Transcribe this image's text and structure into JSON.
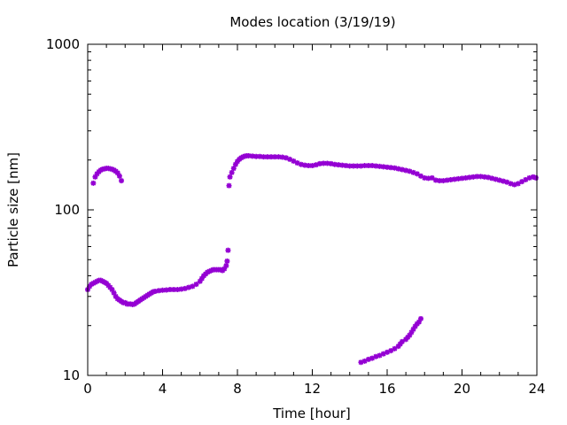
{
  "chart_data": {
    "type": "scatter",
    "title": "Modes location (3/19/19)",
    "xlabel": "Time [hour]",
    "ylabel": "Particle size [nm]",
    "xlim": [
      0,
      24
    ],
    "ylim": [
      10,
      1000
    ],
    "y_scale": "log",
    "grid": false,
    "legend": "none",
    "marker_color": "#9400d3",
    "x_ticks": [
      "0",
      "4",
      "8",
      "12",
      "16",
      "20",
      "24"
    ],
    "y_ticks": [
      "10",
      "100",
      "1000"
    ],
    "series": [
      {
        "values": [
          [
            0.0,
            33
          ],
          [
            0.1,
            34.5
          ],
          [
            0.2,
            35.5
          ],
          [
            0.3,
            36
          ],
          [
            0.4,
            36.5
          ],
          [
            0.5,
            37
          ],
          [
            0.6,
            37.5
          ],
          [
            0.7,
            37.5
          ],
          [
            0.8,
            37
          ],
          [
            0.9,
            36.5
          ],
          [
            1.0,
            36
          ],
          [
            1.1,
            35
          ],
          [
            1.2,
            34
          ],
          [
            1.3,
            33
          ],
          [
            1.4,
            31.5
          ],
          [
            1.5,
            30
          ],
          [
            1.6,
            29
          ],
          [
            1.7,
            28.5
          ],
          [
            1.8,
            28
          ],
          [
            1.9,
            27.5
          ],
          [
            2.0,
            27.5
          ],
          [
            2.1,
            27
          ],
          [
            2.2,
            27
          ],
          [
            2.3,
            27
          ],
          [
            2.4,
            26.8
          ],
          [
            2.5,
            27
          ],
          [
            2.6,
            27.5
          ],
          [
            2.7,
            28
          ],
          [
            2.8,
            28.5
          ],
          [
            2.9,
            29
          ],
          [
            3.0,
            29.5
          ],
          [
            3.1,
            30
          ],
          [
            3.2,
            30.5
          ],
          [
            3.3,
            31
          ],
          [
            3.4,
            31.5
          ],
          [
            3.5,
            32
          ],
          [
            3.6,
            32.2
          ],
          [
            3.8,
            32.5
          ],
          [
            4.0,
            32.7
          ],
          [
            4.2,
            32.8
          ],
          [
            4.4,
            33
          ],
          [
            4.6,
            33
          ],
          [
            4.8,
            33
          ],
          [
            5.0,
            33.2
          ],
          [
            5.2,
            33.5
          ],
          [
            5.4,
            34
          ],
          [
            5.6,
            34.5
          ],
          [
            5.8,
            35.5
          ],
          [
            6.0,
            37
          ],
          [
            6.1,
            38.5
          ],
          [
            6.2,
            40
          ],
          [
            6.3,
            41
          ],
          [
            6.4,
            42
          ],
          [
            6.5,
            42.5
          ],
          [
            6.6,
            43
          ],
          [
            6.7,
            43.5
          ],
          [
            6.8,
            43.5
          ],
          [
            6.9,
            43.5
          ],
          [
            7.0,
            43.5
          ],
          [
            7.1,
            43.5
          ],
          [
            7.2,
            43
          ],
          [
            7.3,
            44
          ],
          [
            7.4,
            46
          ],
          [
            7.45,
            49
          ],
          [
            7.5,
            57
          ]
        ]
      },
      {
        "values": [
          [
            0.3,
            145
          ],
          [
            0.4,
            158
          ],
          [
            0.5,
            165
          ],
          [
            0.6,
            170
          ],
          [
            0.7,
            174
          ],
          [
            0.8,
            176
          ],
          [
            0.9,
            177
          ],
          [
            1.0,
            178
          ],
          [
            1.1,
            178
          ],
          [
            1.2,
            177
          ],
          [
            1.3,
            176
          ],
          [
            1.4,
            174
          ],
          [
            1.5,
            171
          ],
          [
            1.6,
            167
          ],
          [
            1.7,
            160
          ],
          [
            1.8,
            150
          ]
        ]
      },
      {
        "values": [
          [
            7.55,
            140
          ],
          [
            7.6,
            158
          ],
          [
            7.7,
            168
          ],
          [
            7.8,
            178
          ],
          [
            7.9,
            188
          ],
          [
            8.0,
            196
          ],
          [
            8.1,
            202
          ],
          [
            8.2,
            206
          ],
          [
            8.3,
            209
          ],
          [
            8.4,
            211
          ],
          [
            8.5,
            212
          ],
          [
            8.6,
            212
          ],
          [
            8.8,
            211
          ],
          [
            9.0,
            210
          ],
          [
            9.2,
            210
          ],
          [
            9.4,
            209
          ],
          [
            9.6,
            209
          ],
          [
            9.8,
            209
          ],
          [
            10.0,
            209
          ],
          [
            10.2,
            209
          ],
          [
            10.4,
            208
          ],
          [
            10.6,
            206
          ],
          [
            10.8,
            202
          ],
          [
            11.0,
            197
          ],
          [
            11.2,
            192
          ],
          [
            11.4,
            188
          ],
          [
            11.6,
            186
          ],
          [
            11.8,
            185
          ],
          [
            12.0,
            185
          ],
          [
            12.2,
            187
          ],
          [
            12.4,
            190
          ],
          [
            12.6,
            191
          ],
          [
            12.8,
            191
          ],
          [
            13.0,
            190
          ],
          [
            13.2,
            188
          ],
          [
            13.4,
            187
          ],
          [
            13.6,
            186
          ],
          [
            13.8,
            185
          ],
          [
            14.0,
            184
          ],
          [
            14.2,
            184
          ],
          [
            14.4,
            184
          ],
          [
            14.6,
            184
          ],
          [
            14.8,
            185
          ],
          [
            15.0,
            185
          ],
          [
            15.2,
            185
          ],
          [
            15.4,
            184
          ],
          [
            15.6,
            183
          ],
          [
            15.8,
            182
          ],
          [
            16.0,
            181
          ],
          [
            16.2,
            180
          ],
          [
            16.4,
            179
          ],
          [
            16.6,
            177
          ],
          [
            16.8,
            175
          ],
          [
            17.0,
            173
          ],
          [
            17.2,
            171
          ],
          [
            17.4,
            168
          ],
          [
            17.6,
            165
          ],
          [
            17.8,
            160
          ],
          [
            18.0,
            156
          ],
          [
            18.2,
            155
          ],
          [
            18.4,
            156
          ],
          [
            18.6,
            151
          ],
          [
            18.8,
            150
          ],
          [
            19.0,
            150
          ],
          [
            19.2,
            151
          ],
          [
            19.4,
            152
          ],
          [
            19.6,
            153
          ],
          [
            19.8,
            154
          ],
          [
            20.0,
            155
          ],
          [
            20.2,
            156
          ],
          [
            20.4,
            157
          ],
          [
            20.6,
            158
          ],
          [
            20.8,
            159
          ],
          [
            21.0,
            159
          ],
          [
            21.2,
            158
          ],
          [
            21.4,
            157
          ],
          [
            21.6,
            155
          ],
          [
            21.8,
            153
          ],
          [
            22.0,
            151
          ],
          [
            22.2,
            149
          ],
          [
            22.4,
            147
          ],
          [
            22.6,
            144
          ],
          [
            22.8,
            142
          ],
          [
            23.0,
            144
          ],
          [
            23.2,
            148
          ],
          [
            23.4,
            152
          ],
          [
            23.6,
            156
          ],
          [
            23.8,
            158
          ],
          [
            23.95,
            156
          ]
        ]
      },
      {
        "values": [
          [
            14.6,
            12
          ],
          [
            14.8,
            12.2
          ],
          [
            15.0,
            12.5
          ],
          [
            15.2,
            12.7
          ],
          [
            15.4,
            13
          ],
          [
            15.6,
            13.2
          ],
          [
            15.8,
            13.5
          ],
          [
            16.0,
            13.8
          ],
          [
            16.2,
            14.1
          ],
          [
            16.4,
            14.5
          ],
          [
            16.6,
            15
          ],
          [
            16.7,
            15.5
          ],
          [
            16.8,
            16
          ],
          [
            17.0,
            16.5
          ],
          [
            17.1,
            17
          ],
          [
            17.2,
            17.5
          ],
          [
            17.3,
            18.2
          ],
          [
            17.4,
            19
          ],
          [
            17.5,
            19.8
          ],
          [
            17.6,
            20.5
          ],
          [
            17.7,
            21
          ],
          [
            17.8,
            22
          ]
        ]
      }
    ]
  }
}
